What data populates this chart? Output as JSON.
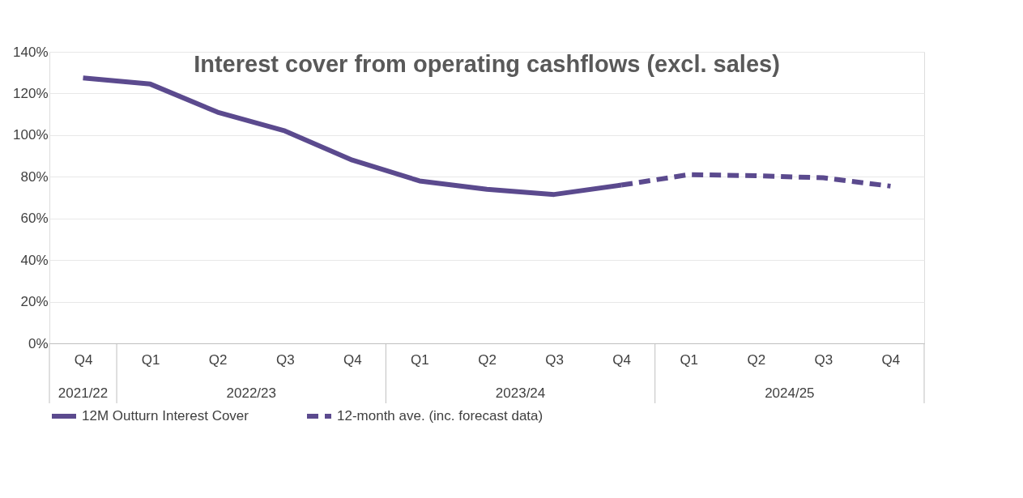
{
  "chart_data": {
    "type": "line",
    "title": "Interest cover from operating cashflows (excl. sales)",
    "categories": [
      "Q4",
      "Q1",
      "Q2",
      "Q3",
      "Q4",
      "Q1",
      "Q2",
      "Q3",
      "Q4",
      "Q1",
      "Q2",
      "Q3",
      "Q4"
    ],
    "series": [
      {
        "name": "12M Outturn Interest Cover",
        "color": "#5b4a8e",
        "line_style": "solid",
        "values": [
          127.5,
          124.5,
          111,
          102,
          88,
          78,
          74,
          71.5,
          76,
          null,
          null,
          null,
          null
        ]
      },
      {
        "name": "12-month ave. (inc. forecast data)",
        "color": "#5b4a8e",
        "line_style": "dashed",
        "values": [
          null,
          null,
          null,
          null,
          null,
          null,
          null,
          null,
          76,
          81,
          80.5,
          79.5,
          75.5
        ]
      }
    ],
    "ylim": [
      0,
      140
    ],
    "yticks": [
      {
        "value": 0,
        "label": "0%"
      },
      {
        "value": 20,
        "label": "20%"
      },
      {
        "value": 40,
        "label": "40%"
      },
      {
        "value": 60,
        "label": "60%"
      },
      {
        "value": 80,
        "label": "80%"
      },
      {
        "value": 100,
        "label": "100%"
      },
      {
        "value": 120,
        "label": "120%"
      },
      {
        "value": 140,
        "label": "140%"
      }
    ],
    "annotations": [
      "2021/22",
      "2022/23",
      "2023/24",
      "2024/25"
    ],
    "grid": "y",
    "legend": "bottom",
    "marker": "none"
  }
}
